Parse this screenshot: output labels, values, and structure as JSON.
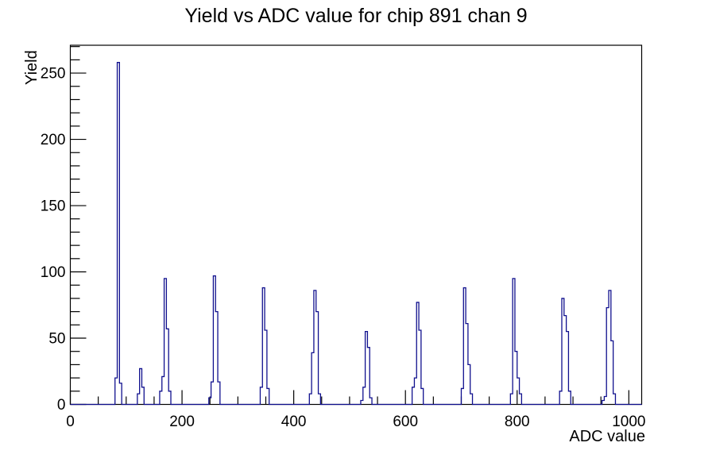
{
  "window": {
    "background_color": "#ffffff"
  },
  "chart_data": {
    "type": "bar",
    "style": "root-histogram-outline",
    "title": "Yield vs ADC value for chip 891 chan 9",
    "xlabel": "ADC value",
    "ylabel": "Yield",
    "xlim": [
      0,
      1023
    ],
    "ylim": [
      0,
      271
    ],
    "x_major_ticks": [
      0,
      200,
      400,
      600,
      800,
      1000
    ],
    "x_minor_step": 50,
    "y_major_ticks": [
      0,
      50,
      100,
      150,
      200,
      250
    ],
    "y_minor_step": 10,
    "grid": false,
    "legend": false,
    "bin_width": 4,
    "line_color": "#10108e",
    "axis_color": "#000000",
    "peaks": [
      {
        "approx_adc": 86,
        "peak_height": 258,
        "bins": [
          [
            80,
            20
          ],
          [
            84,
            258
          ],
          [
            88,
            16
          ]
        ]
      },
      {
        "approx_adc": 126,
        "peak_height": 27,
        "bins": [
          [
            120,
            8
          ],
          [
            124,
            27
          ],
          [
            128,
            13
          ]
        ]
      },
      {
        "approx_adc": 167,
        "peak_height": 95,
        "bins": [
          [
            160,
            10
          ],
          [
            164,
            21
          ],
          [
            168,
            95
          ],
          [
            172,
            57
          ],
          [
            176,
            10
          ]
        ]
      },
      {
        "approx_adc": 256,
        "peak_height": 97,
        "bins": [
          [
            248,
            5
          ],
          [
            252,
            17
          ],
          [
            256,
            97
          ],
          [
            260,
            70
          ],
          [
            264,
            17
          ]
        ]
      },
      {
        "approx_adc": 346,
        "peak_height": 88,
        "bins": [
          [
            340,
            13
          ],
          [
            344,
            88
          ],
          [
            348,
            56
          ],
          [
            352,
            12
          ]
        ]
      },
      {
        "approx_adc": 437,
        "peak_height": 86,
        "bins": [
          [
            428,
            8
          ],
          [
            432,
            39
          ],
          [
            436,
            86
          ],
          [
            440,
            70
          ],
          [
            444,
            8
          ]
        ]
      },
      {
        "approx_adc": 527,
        "peak_height": 55,
        "bins": [
          [
            518,
            3
          ],
          [
            522,
            13
          ],
          [
            526,
            55
          ],
          [
            530,
            43
          ],
          [
            534,
            5
          ]
        ]
      },
      {
        "approx_adc": 618,
        "peak_height": 77,
        "bins": [
          [
            610,
            13
          ],
          [
            614,
            20
          ],
          [
            618,
            77
          ],
          [
            622,
            56
          ],
          [
            626,
            12
          ]
        ]
      },
      {
        "approx_adc": 706,
        "peak_height": 88,
        "bins": [
          [
            700,
            12
          ],
          [
            704,
            88
          ],
          [
            708,
            61
          ],
          [
            712,
            30
          ],
          [
            716,
            8
          ]
        ]
      },
      {
        "approx_adc": 794,
        "peak_height": 95,
        "bins": [
          [
            788,
            8
          ],
          [
            792,
            95
          ],
          [
            796,
            40
          ],
          [
            800,
            20
          ],
          [
            804,
            8
          ]
        ]
      },
      {
        "approx_adc": 882,
        "peak_height": 80,
        "bins": [
          [
            876,
            10
          ],
          [
            880,
            80
          ],
          [
            884,
            67
          ],
          [
            888,
            55
          ],
          [
            892,
            10
          ]
        ]
      },
      {
        "approx_adc": 965,
        "peak_height": 86,
        "bins": [
          [
            952,
            3
          ],
          [
            956,
            6
          ],
          [
            960,
            73
          ],
          [
            964,
            86
          ],
          [
            968,
            48
          ],
          [
            972,
            8
          ]
        ]
      }
    ]
  }
}
